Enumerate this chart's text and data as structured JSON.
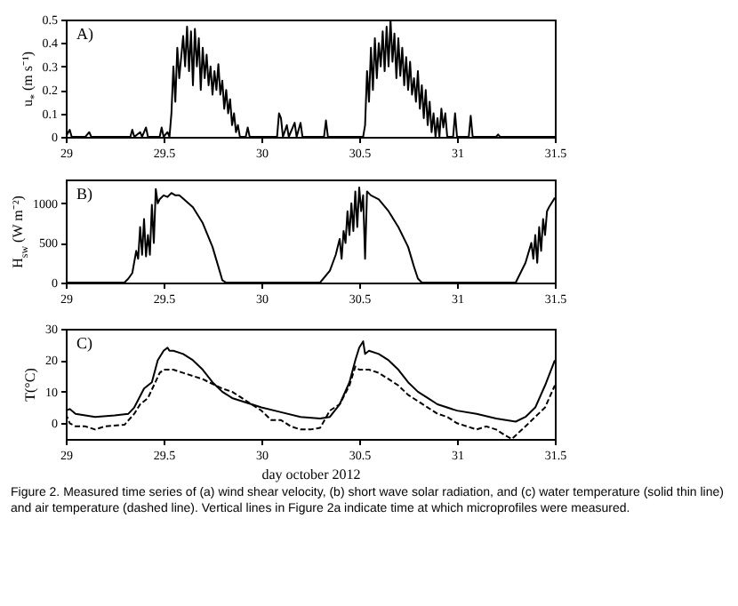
{
  "chart_data": [
    {
      "type": "line",
      "ylabel": "u$_{*}$ (m s⁻¹)",
      "annotations": [
        "A)"
      ],
      "xlim": [
        29,
        31.5
      ],
      "xticks": [
        29,
        29.5,
        30,
        30.5,
        31,
        31.5
      ],
      "ylim": [
        0,
        0.5
      ],
      "yticks": [
        0,
        0.1,
        0.2,
        0.3,
        0.4,
        0.5
      ],
      "grid": false,
      "marker": "none",
      "series": [
        {
          "color": "#000000",
          "line_style": "solid",
          "x": [
            29.0,
            29.02,
            29.03,
            29.1,
            29.12,
            29.13,
            29.33,
            29.34,
            29.35,
            29.38,
            29.39,
            29.41,
            29.42,
            29.48,
            29.49,
            29.5,
            29.52,
            29.53,
            29.54,
            29.55,
            29.56,
            29.57,
            29.58,
            29.6,
            29.61,
            29.62,
            29.63,
            29.64,
            29.65,
            29.66,
            29.67,
            29.68,
            29.69,
            29.7,
            29.71,
            29.72,
            29.73,
            29.74,
            29.75,
            29.76,
            29.77,
            29.78,
            29.79,
            29.8,
            29.81,
            29.82,
            29.83,
            29.84,
            29.85,
            29.86,
            29.87,
            29.88,
            29.89,
            29.92,
            29.93,
            29.94,
            30.08,
            30.09,
            30.1,
            30.11,
            30.13,
            30.14,
            30.17,
            30.18,
            30.2,
            30.21,
            30.32,
            30.33,
            30.34,
            30.52,
            30.53,
            30.54,
            30.55,
            30.56,
            30.57,
            30.58,
            30.59,
            30.6,
            30.61,
            30.62,
            30.63,
            30.64,
            30.65,
            30.66,
            30.67,
            30.68,
            30.69,
            30.7,
            30.71,
            30.72,
            30.73,
            30.74,
            30.75,
            30.76,
            30.77,
            30.78,
            30.79,
            30.8,
            30.81,
            30.82,
            30.83,
            30.84,
            30.85,
            30.86,
            30.87,
            30.88,
            30.89,
            30.9,
            30.91,
            30.92,
            30.93,
            30.94,
            30.95,
            30.98,
            30.99,
            31.0,
            31.06,
            31.07,
            31.08,
            31.2,
            31.21,
            31.22,
            31.5
          ],
          "values": [
            0,
            0.03,
            0,
            0,
            0.02,
            0,
            0,
            0.03,
            0,
            0.02,
            0,
            0.04,
            0,
            0,
            0.04,
            0,
            0.02,
            0,
            0.1,
            0.3,
            0.15,
            0.38,
            0.25,
            0.43,
            0.3,
            0.47,
            0.28,
            0.45,
            0.22,
            0.46,
            0.3,
            0.42,
            0.2,
            0.38,
            0.25,
            0.35,
            0.22,
            0.3,
            0.18,
            0.28,
            0.2,
            0.31,
            0.18,
            0.24,
            0.12,
            0.2,
            0.1,
            0.16,
            0.05,
            0.1,
            0.02,
            0.05,
            0,
            0,
            0.04,
            0,
            0,
            0.1,
            0.08,
            0,
            0.05,
            0,
            0.06,
            0,
            0.06,
            0,
            0,
            0.07,
            0,
            0,
            0.05,
            0.28,
            0.15,
            0.38,
            0.2,
            0.42,
            0.25,
            0.4,
            0.3,
            0.45,
            0.28,
            0.47,
            0.3,
            0.5,
            0.32,
            0.44,
            0.25,
            0.42,
            0.26,
            0.38,
            0.22,
            0.34,
            0.2,
            0.32,
            0.18,
            0.25,
            0.15,
            0.28,
            0.12,
            0.22,
            0.08,
            0.2,
            0.05,
            0.15,
            0.02,
            0.1,
            0,
            0.08,
            0,
            0.12,
            0.04,
            0.1,
            0,
            0,
            0.1,
            0,
            0,
            0.09,
            0,
            0,
            0.01,
            0,
            0
          ]
        }
      ]
    },
    {
      "type": "line",
      "ylabel": "H$_{sw}$ (W m⁻²)",
      "annotations": [
        "B)"
      ],
      "xlim": [
        29,
        31.5
      ],
      "xticks": [
        29,
        29.5,
        30,
        30.5,
        31,
        31.5
      ],
      "ylim": [
        0,
        1300
      ],
      "yticks": [
        0,
        500,
        1000
      ],
      "grid": false,
      "marker": "none",
      "series": [
        {
          "color": "#000000",
          "line_style": "solid",
          "x": [
            29,
            29.3,
            29.32,
            29.34,
            29.36,
            29.37,
            29.38,
            29.39,
            29.4,
            29.41,
            29.42,
            29.43,
            29.44,
            29.45,
            29.46,
            29.47,
            29.48,
            29.5,
            29.52,
            29.54,
            29.56,
            29.58,
            29.6,
            29.65,
            29.7,
            29.75,
            29.78,
            29.8,
            29.82,
            30.3,
            30.35,
            30.38,
            30.4,
            30.41,
            30.42,
            30.43,
            30.44,
            30.45,
            30.46,
            30.47,
            30.48,
            30.49,
            30.5,
            30.51,
            30.52,
            30.53,
            30.54,
            30.56,
            30.6,
            30.65,
            30.7,
            30.75,
            30.78,
            30.8,
            30.82,
            31.3,
            31.35,
            31.38,
            31.39,
            31.4,
            31.41,
            31.42,
            31.43,
            31.44,
            31.45,
            31.46,
            31.47,
            31.5
          ],
          "values": [
            0,
            0,
            50,
            120,
            400,
            300,
            700,
            350,
            800,
            330,
            600,
            350,
            980,
            500,
            1180,
            1000,
            1050,
            1100,
            1080,
            1130,
            1100,
            1100,
            1060,
            950,
            750,
            450,
            200,
            30,
            0,
            0,
            150,
            350,
            550,
            300,
            650,
            500,
            900,
            600,
            1000,
            650,
            1150,
            700,
            1200,
            900,
            1100,
            300,
            1150,
            1100,
            1050,
            900,
            700,
            450,
            200,
            50,
            0,
            0,
            250,
            500,
            300,
            600,
            250,
            700,
            400,
            800,
            600,
            900,
            950,
            1070
          ]
        }
      ]
    },
    {
      "type": "line",
      "ylabel": "T(°C)",
      "xlabel": "day october 2012",
      "annotations": [
        "C)",
        "Figure 2. Measured time series of (a) wind shear velocity, (b) short wave solar radiation, and (c) water temperature (solid thin line) and air temperature (dashed line). Vertical lines in Figure 2a indicate time at which microprofiles were measured."
      ],
      "xlim": [
        29,
        31.5
      ],
      "xticks": [
        29,
        29.5,
        30,
        30.5,
        31,
        31.5
      ],
      "ylim": [
        -5,
        30
      ],
      "yticks": [
        0,
        10,
        20,
        30
      ],
      "grid": false,
      "marker": "none",
      "series": [
        {
          "color": "#000000",
          "line_style": "solid",
          "x": [
            29,
            29.02,
            29.05,
            29.1,
            29.15,
            29.25,
            29.32,
            29.35,
            29.4,
            29.44,
            29.47,
            29.5,
            29.52,
            29.53,
            29.55,
            29.6,
            29.65,
            29.7,
            29.75,
            29.8,
            29.85,
            29.9,
            29.95,
            30,
            30.1,
            30.2,
            30.3,
            30.35,
            30.4,
            30.45,
            30.48,
            30.5,
            30.52,
            30.53,
            30.55,
            30.6,
            30.65,
            30.7,
            30.75,
            30.8,
            30.85,
            30.9,
            31,
            31.1,
            31.2,
            31.3,
            31.35,
            31.4,
            31.45,
            31.5
          ],
          "values": [
            4,
            4.5,
            3,
            2.5,
            2,
            2.5,
            3,
            5,
            11,
            13,
            20,
            23,
            24,
            23,
            23,
            22,
            20,
            17,
            13,
            10,
            8,
            7,
            6,
            5,
            3.5,
            2,
            1.5,
            2,
            6,
            13,
            20,
            24,
            26,
            22,
            23,
            22,
            20,
            17,
            13,
            10,
            8,
            6,
            4,
            3,
            1.5,
            0.5,
            2,
            5,
            12,
            20
          ]
        },
        {
          "color": "#000000",
          "line_style": "dashed",
          "x": [
            29,
            29.02,
            29.05,
            29.1,
            29.15,
            29.2,
            29.3,
            29.35,
            29.38,
            29.42,
            29.45,
            29.48,
            29.5,
            29.55,
            29.6,
            29.65,
            29.7,
            29.75,
            29.8,
            29.85,
            29.9,
            29.95,
            30,
            30.05,
            30.1,
            30.15,
            30.2,
            30.25,
            30.3,
            30.35,
            30.4,
            30.45,
            30.48,
            30.5,
            30.55,
            30.6,
            30.65,
            30.7,
            30.75,
            30.8,
            30.85,
            30.9,
            30.95,
            31,
            31.05,
            31.1,
            31.15,
            31.2,
            31.25,
            31.28,
            31.35,
            31.4,
            31.45,
            31.5
          ],
          "values": [
            3,
            0,
            -1,
            -1,
            -2,
            -1,
            -0.5,
            3,
            6,
            8,
            12,
            16,
            17,
            17,
            16,
            15,
            14,
            12.5,
            11,
            10,
            8,
            6,
            4,
            1,
            1,
            -1,
            -2,
            -2,
            -1.5,
            4,
            6,
            12,
            18,
            17,
            17,
            16,
            14,
            12,
            9,
            7,
            5,
            3,
            2,
            0,
            -1,
            -2,
            -1,
            -2,
            -4,
            -5,
            -1,
            2,
            5,
            12
          ]
        }
      ]
    }
  ]
}
